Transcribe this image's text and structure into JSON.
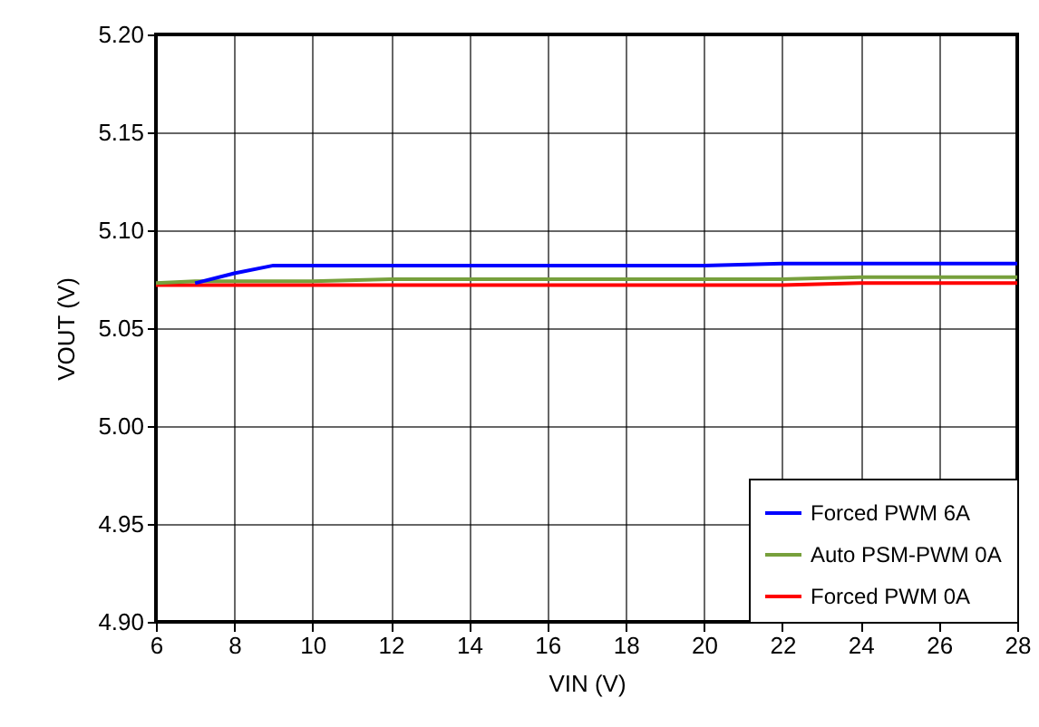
{
  "chart_data": {
    "type": "line",
    "xlabel": "VIN (V)",
    "ylabel": "VOUT (V)",
    "x": [
      6,
      7,
      8,
      9,
      10,
      12,
      14,
      16,
      18,
      20,
      22,
      24,
      26,
      28
    ],
    "series": [
      {
        "name": "Forced PWM 6A",
        "color": "#0000ff",
        "values": [
          null,
          5.073,
          5.078,
          5.082,
          5.082,
          5.082,
          5.082,
          5.082,
          5.082,
          5.082,
          5.083,
          5.083,
          5.083,
          5.083
        ]
      },
      {
        "name": "Auto PSM-PWM 0A",
        "color": "#77a03c",
        "values": [
          5.073,
          5.074,
          5.074,
          5.074,
          5.074,
          5.075,
          5.075,
          5.075,
          5.075,
          5.075,
          5.075,
          5.076,
          5.076,
          5.076
        ]
      },
      {
        "name": "Forced PWM 0A",
        "color": "#ff0000",
        "values": [
          5.072,
          5.072,
          5.072,
          5.072,
          5.072,
          5.072,
          5.072,
          5.072,
          5.072,
          5.072,
          5.072,
          5.073,
          5.073,
          5.073
        ]
      }
    ],
    "xlim": [
      6,
      28
    ],
    "xticks": [
      6,
      8,
      10,
      12,
      14,
      16,
      18,
      20,
      22,
      24,
      26,
      28
    ],
    "ylim": [
      4.9,
      5.2
    ],
    "yticks": [
      {
        "value": 4.9,
        "label": "4.90"
      },
      {
        "value": 4.95,
        "label": "4.95"
      },
      {
        "value": 5.0,
        "label": "5.00"
      },
      {
        "value": 5.05,
        "label": "5.05"
      },
      {
        "value": 5.1,
        "label": "5.10"
      },
      {
        "value": 5.15,
        "label": "5.15"
      },
      {
        "value": 5.2,
        "label": "5.20"
      }
    ],
    "grid": true,
    "legend": "bottom right",
    "line_style": "solid",
    "marker": "none"
  }
}
